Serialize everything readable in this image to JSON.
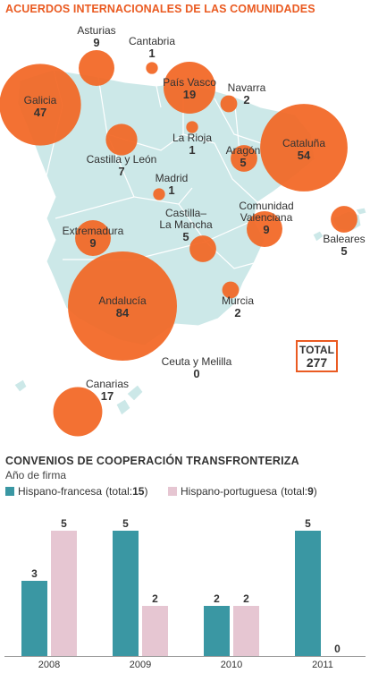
{
  "title": "ACUERDOS INTERNACIONALES DE LAS COMUNIDADES",
  "total": {
    "label": "TOTAL",
    "value": "277"
  },
  "colors": {
    "bubble": "#f26522",
    "map": "#cce8e8",
    "teal": "#3a97a3",
    "pink": "#e6c6d2",
    "accent": "#ea5b22"
  },
  "chart_data": [
    {
      "type": "bubble-map",
      "title": "ACUERDOS INTERNACIONALES DE LAS COMUNIDADES",
      "regions": [
        {
          "name": "Asturias",
          "value": 9
        },
        {
          "name": "Cantabria",
          "value": 1
        },
        {
          "name": "País Vasco",
          "value": 19
        },
        {
          "name": "Navarra",
          "value": 2
        },
        {
          "name": "Galicia",
          "value": 47
        },
        {
          "name": "La Rioja",
          "value": 1
        },
        {
          "name": "Aragón",
          "value": 5
        },
        {
          "name": "Cataluña",
          "value": 54
        },
        {
          "name": "Castilla y León",
          "value": 7
        },
        {
          "name": "Madrid",
          "value": 1
        },
        {
          "name": "Castilla–La Mancha",
          "value": 5
        },
        {
          "name": "Comunidad Valenciana",
          "value": 9
        },
        {
          "name": "Baleares",
          "value": 5
        },
        {
          "name": "Extremadura",
          "value": 9
        },
        {
          "name": "Andalucía",
          "value": 84
        },
        {
          "name": "Murcia",
          "value": 2
        },
        {
          "name": "Ceuta y Melilla",
          "value": 0
        },
        {
          "name": "Canarias",
          "value": 17
        }
      ],
      "total": 277
    },
    {
      "type": "bar",
      "title": "CONVENIOS DE COOPERACIÓN TRANSFRONTERIZA",
      "subtitle": "Año de firma",
      "categories": [
        "2008",
        "2009",
        "2010",
        "2011"
      ],
      "series": [
        {
          "name": "Hispano-francesa",
          "total_label": "(total: ",
          "total": "15",
          "values": [
            3,
            5,
            2,
            5
          ]
        },
        {
          "name": "Hispano-portuguesa",
          "total_label": "(total: ",
          "total": "9",
          "values": [
            5,
            2,
            2,
            0
          ]
        }
      ],
      "ylim": [
        0,
        5
      ],
      "legend": "top-left",
      "grid": false
    }
  ]
}
